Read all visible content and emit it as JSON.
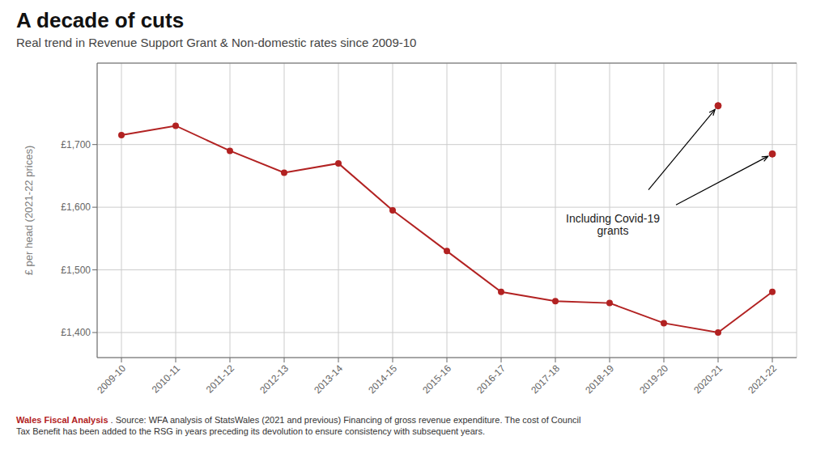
{
  "chart_data": {
    "type": "line",
    "title": "A decade of cuts",
    "subtitle": "Real trend in Revenue Support Grant & Non-domestic rates since 2009-10",
    "ylabel": "£ per head (2021-22 prices)",
    "categories": [
      "2009-10",
      "2010-11",
      "2011-12",
      "2012-13",
      "2013-14",
      "2014-15",
      "2015-16",
      "2016-17",
      "2017-18",
      "2018-19",
      "2019-20",
      "2020-21",
      "2021-22"
    ],
    "series": [
      {
        "type": "line",
        "color": "#b22222",
        "marker": "circle",
        "values": [
          1715,
          1730,
          1690,
          1655,
          1670,
          1595,
          1530,
          1465,
          1450,
          1447,
          1415,
          1400,
          1465
        ]
      },
      {
        "type": "scatter",
        "color": "#b22222",
        "marker": "circle",
        "values": [
          null,
          null,
          null,
          null,
          null,
          null,
          null,
          null,
          null,
          null,
          null,
          1762,
          1685
        ]
      }
    ],
    "annotation": "Including Covid-19\ngrants",
    "ylim": [
      1360,
      1830
    ],
    "yticks": [
      {
        "value": 1400,
        "label": "£1,400"
      },
      {
        "value": 1500,
        "label": "£1,500"
      },
      {
        "value": 1600,
        "label": "£1,600"
      },
      {
        "value": 1700,
        "label": "£1,700"
      }
    ],
    "grid": true,
    "footer": [
      {
        "text": "Wales Fiscal Analysis",
        "color": "#b22222"
      },
      {
        "text": " . Source: WFA analysis of StatsWales (2021 and previous) Financing of gross revenue expenditure. The cost of Council\nTax Benefit has been added to the RSG in years preceding its devolution to ensure consistency with subsequent years.",
        "color": "#333333"
      }
    ]
  }
}
